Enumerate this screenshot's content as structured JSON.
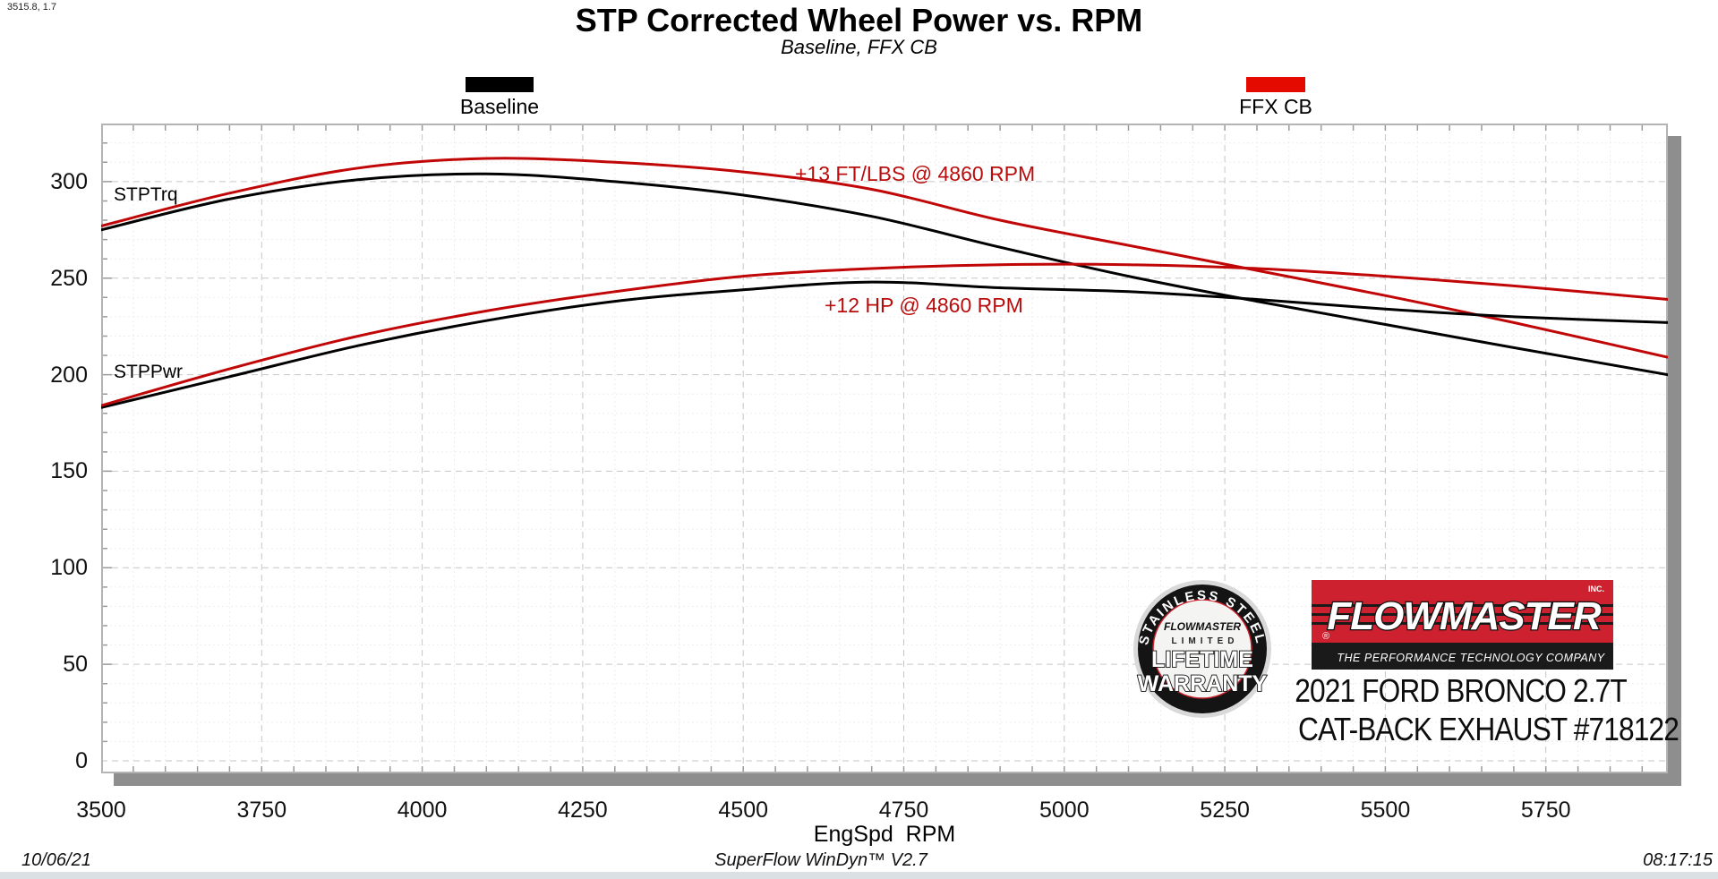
{
  "window": {
    "cursor_readout": "3515.8, 1.7"
  },
  "header": {
    "title": "STP Corrected Wheel Power vs. RPM",
    "subtitle": "Baseline, FFX CB"
  },
  "legend": {
    "baseline_label": "Baseline",
    "ffx_label": "FFX CB",
    "baseline_color": "#000000",
    "ffx_color": "#e50a00"
  },
  "annotations": {
    "torque_gain": "+13 FT/LBS @ 4860 RPM",
    "power_gain": "+12 HP @ 4860 RPM"
  },
  "curve_labels": {
    "torque": "STPTrq",
    "power": "STPPwr"
  },
  "axis": {
    "x_title": "EngSpd  RPM"
  },
  "branding": {
    "badge": {
      "arc_text": "STAINLESS STEEL",
      "brand": "FLOWMASTER",
      "line1": "LIMITED",
      "line2": "LIFETIME",
      "line3": "WARRANTY"
    },
    "logo": {
      "brand": "FLOWMASTER",
      "inc": "INC.",
      "registered": "®",
      "tagline": "THE PERFORMANCE TECHNOLOGY COMPANY",
      "red": "#cd2130"
    },
    "vehicle_line1": "2021 FORD BRONCO 2.7T",
    "vehicle_line2": "CAT-BACK EXHAUST #718122"
  },
  "footer": {
    "date": "10/06/21",
    "software": "SuperFlow WinDyn™ V2.7",
    "time": "08:17:15"
  },
  "chart_data": {
    "type": "line",
    "title": "STP Corrected Wheel Power vs. RPM",
    "subtitle": "Baseline, FFX CB",
    "xlabel": "EngSpd RPM",
    "ylabel": "",
    "xlim": [
      3500,
      5940
    ],
    "ylim": [
      0,
      330
    ],
    "x_ticks": [
      3500,
      3750,
      4000,
      4250,
      4500,
      4750,
      5000,
      5250,
      5500,
      5750
    ],
    "y_ticks": [
      0,
      50,
      100,
      150,
      200,
      250,
      300
    ],
    "grid": "major dashed gridlines every 250 RPM / 50 units, faint minor gridlines every 50 RPM / 10 units",
    "legend_position": "above plot",
    "x": [
      3500,
      3700,
      3900,
      4100,
      4300,
      4500,
      4700,
      4900,
      5100,
      5300,
      5500,
      5700,
      5940
    ],
    "series": [
      {
        "name": "Baseline STPTrq",
        "color": "#000000",
        "width": 3,
        "values": [
          275,
          291,
          301,
          304,
          300,
          293,
          282,
          266,
          251,
          238,
          226,
          214,
          200
        ]
      },
      {
        "name": "FFX CB STPTrq",
        "color": "#c00606",
        "width": 3,
        "values": [
          277,
          294,
          307,
          312,
          310,
          305,
          296,
          280,
          267,
          254,
          241,
          227,
          209
        ]
      },
      {
        "name": "Baseline STPPwr",
        "color": "#000000",
        "width": 3,
        "values": [
          183,
          199,
          215,
          228,
          238,
          244,
          248,
          245,
          243,
          239,
          234,
          230,
          227
        ]
      },
      {
        "name": "FFX CB STPPwr",
        "color": "#c00606",
        "width": 3,
        "values": [
          184,
          203,
          220,
          233,
          243,
          251,
          255,
          257,
          257,
          255,
          251,
          246,
          239
        ]
      }
    ],
    "annotations": [
      {
        "text": "+13 FT/LBS @ 4860 RPM",
        "color": "#b90c0c",
        "near": "torque curves"
      },
      {
        "text": "+12 HP @ 4860 RPM",
        "color": "#b90c0c",
        "near": "power curves"
      }
    ],
    "curve_labels": [
      "STPTrq",
      "STPPwr"
    ]
  }
}
